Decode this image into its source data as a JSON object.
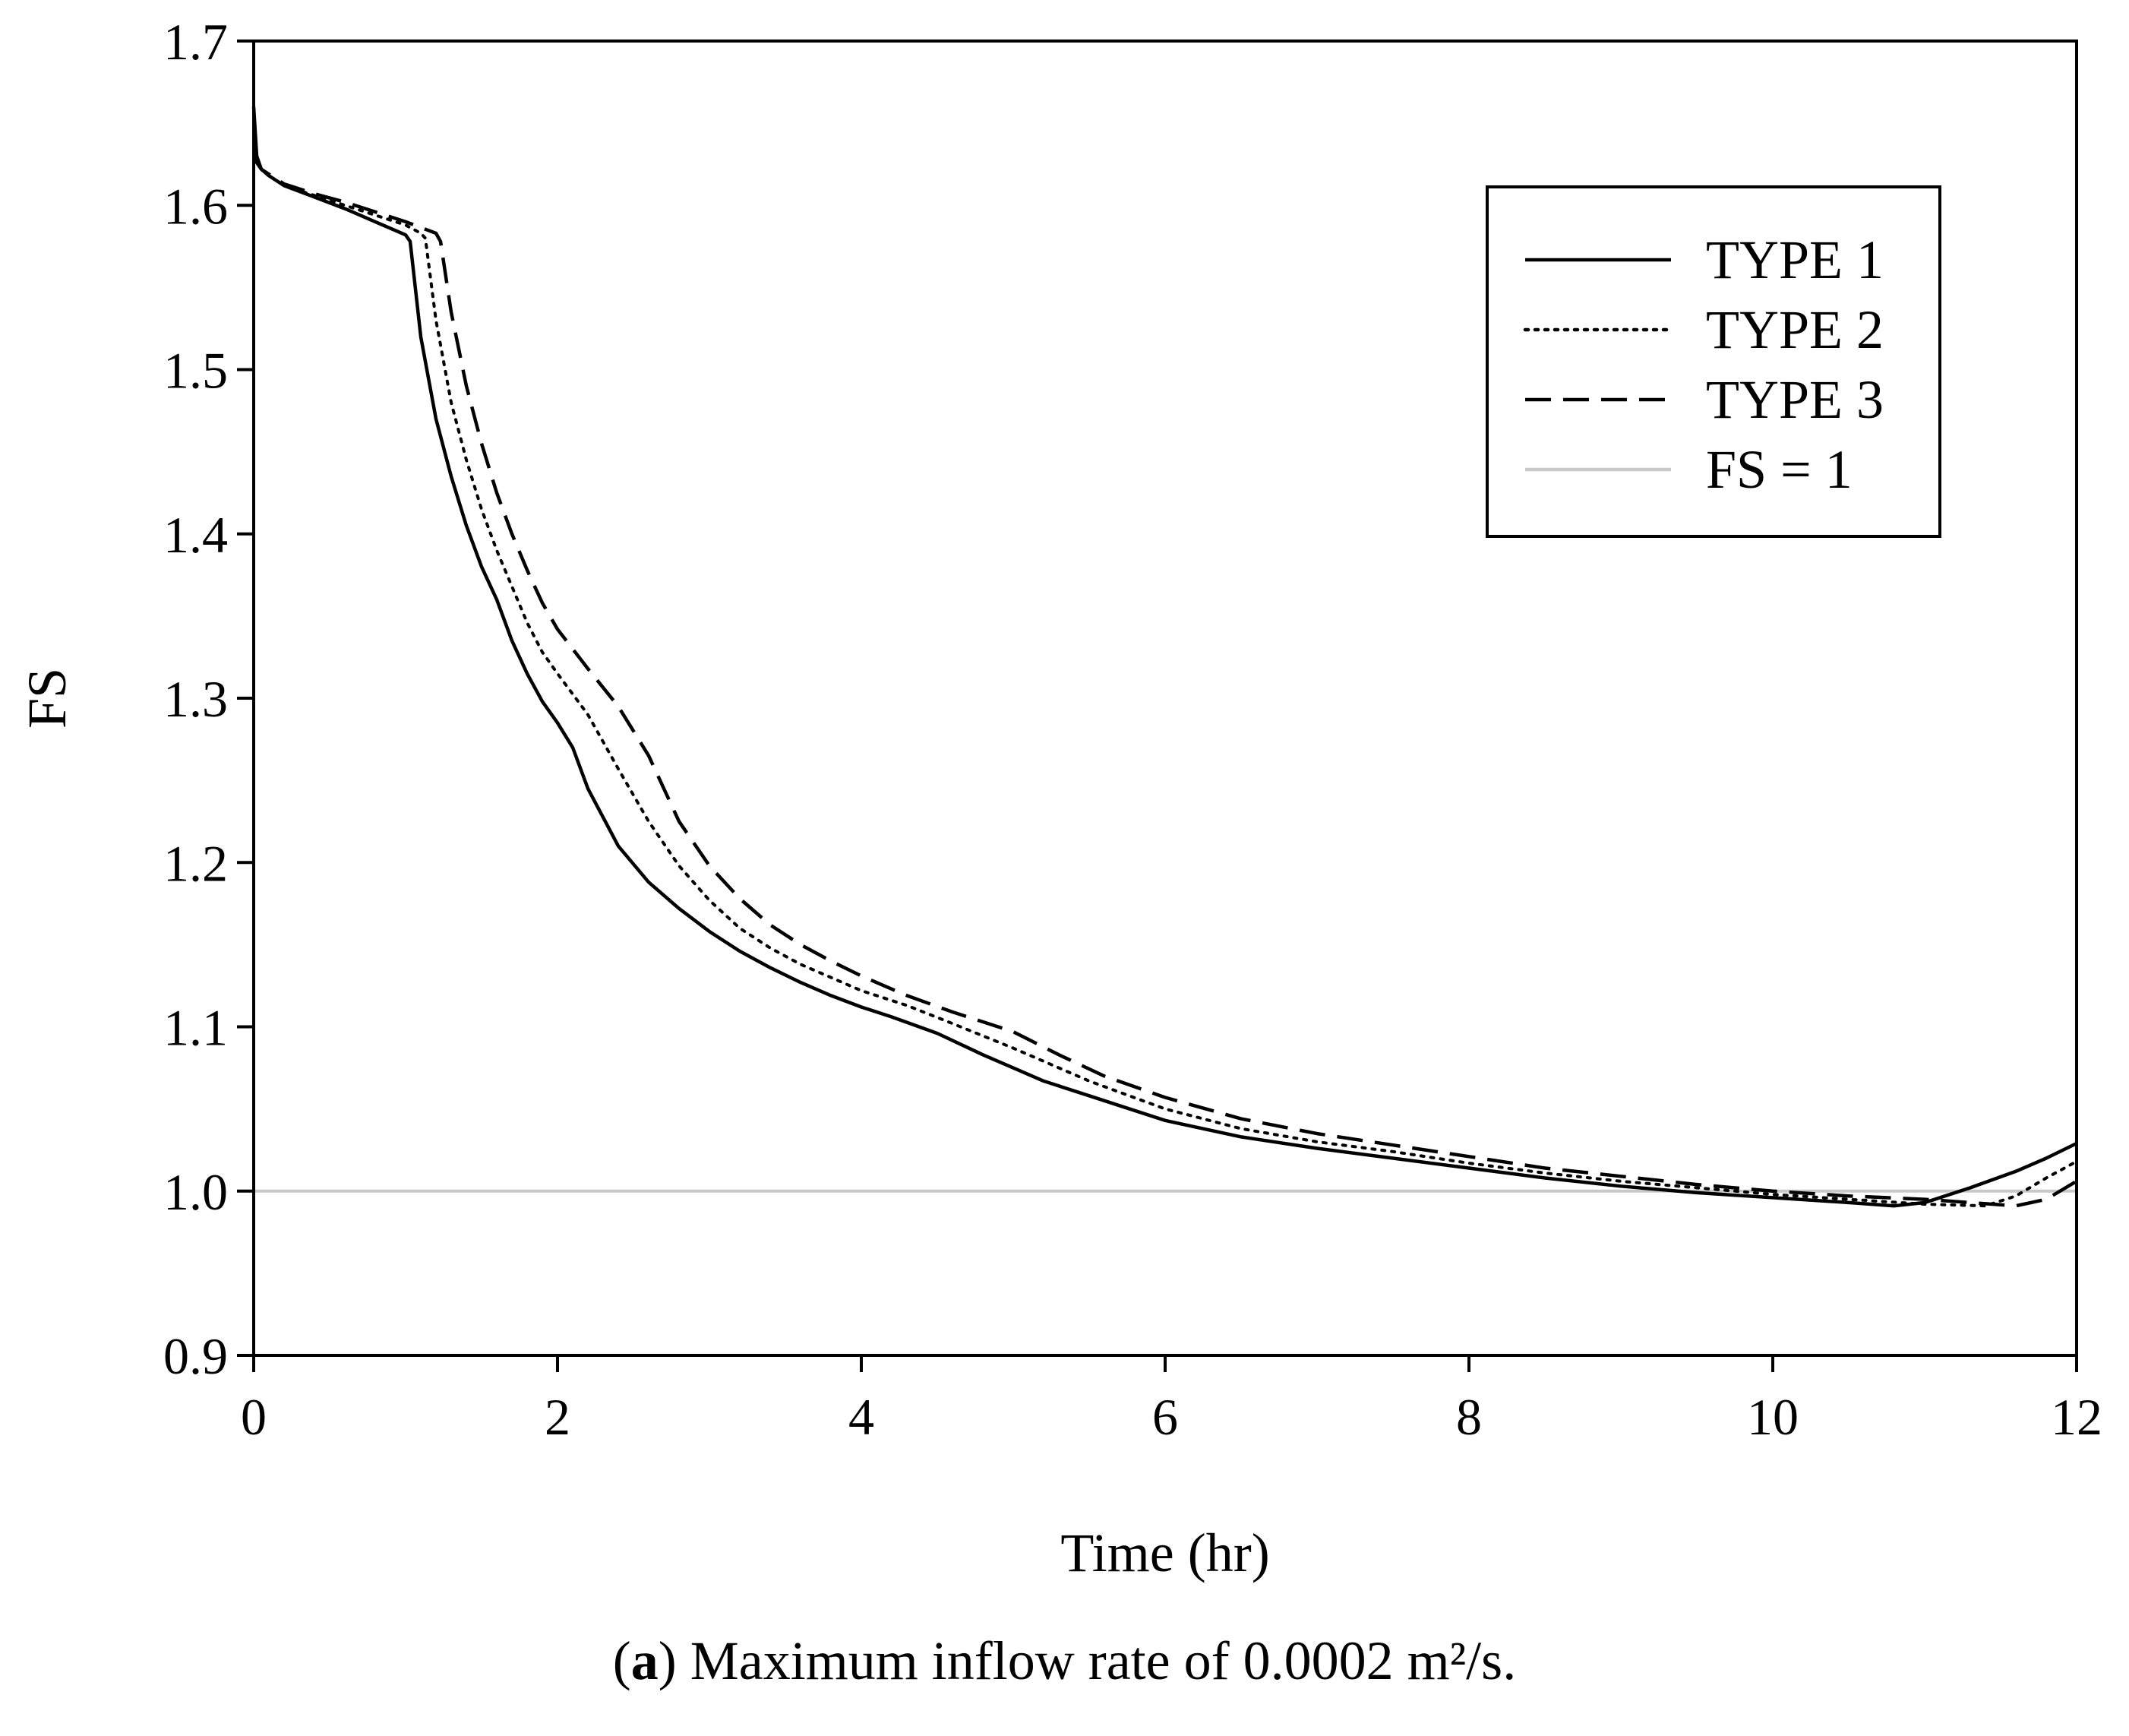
{
  "chart_data": {
    "type": "line",
    "title": "",
    "xlabel": "Time (hr)",
    "ylabel": "FS",
    "xlim": [
      0,
      12
    ],
    "ylim": [
      0.9,
      1.7
    ],
    "xticks": [
      0,
      2,
      4,
      6,
      8,
      10,
      12
    ],
    "yticks": [
      "0.9",
      "1.0",
      "1.1",
      "1.2",
      "1.3",
      "1.4",
      "1.5",
      "1.6",
      "1.7"
    ],
    "grid": false,
    "legend_position": "top-right",
    "series": [
      {
        "name": "TYPE 1",
        "style": "solid",
        "color": "#000000",
        "x": [
          0,
          0.02,
          0.05,
          0.1,
          0.2,
          0.4,
          0.6,
          0.8,
          1.0,
          1.03,
          1.1,
          1.2,
          1.3,
          1.4,
          1.5,
          1.6,
          1.7,
          1.8,
          1.9,
          2.0,
          2.1,
          2.2,
          2.4,
          2.6,
          2.8,
          3.0,
          3.2,
          3.4,
          3.6,
          3.8,
          4.0,
          4.2,
          4.5,
          4.8,
          5.0,
          5.2,
          5.5,
          6.0,
          6.5,
          7.0,
          7.5,
          8.0,
          8.5,
          9.0,
          9.5,
          10.0,
          10.5,
          10.8,
          11.0,
          11.3,
          11.6,
          11.8,
          12.0
        ],
        "y": [
          1.66,
          1.63,
          1.622,
          1.618,
          1.612,
          1.605,
          1.598,
          1.59,
          1.582,
          1.578,
          1.52,
          1.47,
          1.435,
          1.405,
          1.38,
          1.36,
          1.335,
          1.315,
          1.298,
          1.285,
          1.27,
          1.245,
          1.21,
          1.188,
          1.172,
          1.158,
          1.146,
          1.136,
          1.127,
          1.119,
          1.112,
          1.106,
          1.096,
          1.083,
          1.075,
          1.067,
          1.058,
          1.043,
          1.033,
          1.026,
          1.02,
          1.014,
          1.008,
          1.003,
          0.999,
          0.996,
          0.993,
          0.991,
          0.993,
          1.002,
          1.012,
          1.02,
          1.029
        ]
      },
      {
        "name": "TYPE 2",
        "style": "dotted",
        "color": "#000000",
        "x": [
          0,
          0.02,
          0.05,
          0.1,
          0.2,
          0.4,
          0.6,
          0.8,
          1.0,
          1.1,
          1.13,
          1.2,
          1.3,
          1.4,
          1.5,
          1.6,
          1.7,
          1.8,
          1.9,
          2.0,
          2.2,
          2.4,
          2.6,
          2.8,
          3.0,
          3.2,
          3.4,
          3.6,
          3.8,
          4.0,
          4.3,
          4.6,
          5.0,
          5.2,
          5.5,
          6.0,
          6.5,
          7.0,
          7.5,
          8.0,
          8.5,
          9.0,
          9.5,
          10.0,
          10.5,
          11.0,
          11.4,
          11.6,
          11.8,
          12.0
        ],
        "y": [
          1.64,
          1.627,
          1.622,
          1.618,
          1.612,
          1.606,
          1.6,
          1.594,
          1.588,
          1.583,
          1.58,
          1.53,
          1.48,
          1.445,
          1.415,
          1.39,
          1.368,
          1.346,
          1.328,
          1.315,
          1.29,
          1.257,
          1.225,
          1.198,
          1.177,
          1.16,
          1.148,
          1.138,
          1.13,
          1.122,
          1.113,
          1.102,
          1.087,
          1.079,
          1.067,
          1.05,
          1.038,
          1.03,
          1.024,
          1.017,
          1.011,
          1.006,
          1.002,
          0.998,
          0.995,
          0.992,
          0.991,
          0.997,
          1.008,
          1.018
        ]
      },
      {
        "name": "TYPE 3",
        "style": "dashed",
        "color": "#000000",
        "x": [
          0,
          0.02,
          0.05,
          0.1,
          0.2,
          0.4,
          0.6,
          0.8,
          1.0,
          1.2,
          1.23,
          1.3,
          1.4,
          1.5,
          1.6,
          1.7,
          1.8,
          1.9,
          2.0,
          2.2,
          2.4,
          2.6,
          2.8,
          3.0,
          3.2,
          3.4,
          3.6,
          3.8,
          4.0,
          4.3,
          4.6,
          5.0,
          5.3,
          5.6,
          6.0,
          6.5,
          7.0,
          7.5,
          8.0,
          8.5,
          9.0,
          9.5,
          10.0,
          10.5,
          11.0,
          11.3,
          11.6,
          11.8,
          12.0
        ],
        "y": [
          1.63,
          1.626,
          1.622,
          1.619,
          1.613,
          1.607,
          1.602,
          1.596,
          1.59,
          1.583,
          1.578,
          1.535,
          1.49,
          1.455,
          1.425,
          1.4,
          1.378,
          1.358,
          1.342,
          1.318,
          1.295,
          1.265,
          1.225,
          1.198,
          1.178,
          1.162,
          1.15,
          1.14,
          1.131,
          1.119,
          1.109,
          1.097,
          1.083,
          1.07,
          1.057,
          1.044,
          1.035,
          1.028,
          1.021,
          1.014,
          1.009,
          1.004,
          1.0,
          0.997,
          0.995,
          0.993,
          0.991,
          0.995,
          1.006
        ]
      },
      {
        "name": "FS = 1",
        "style": "solid",
        "color": "#c8c8c8",
        "x": [
          0,
          12
        ],
        "y": [
          1.0,
          1.0
        ]
      }
    ]
  },
  "caption": {
    "label": "a",
    "text": " Maximum inflow rate of 0.0002 m²/s."
  }
}
